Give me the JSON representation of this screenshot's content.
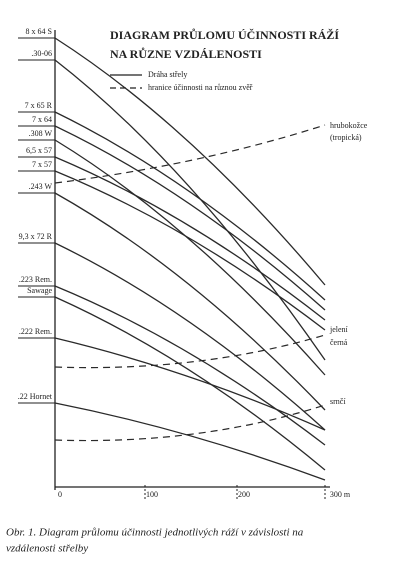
{
  "header": {
    "title_lines": [
      "DIAGRAM PRŮLOMU ÚČINNOSTI RÁŽÍ",
      "NA RŮZNE VZDÁLENOSTI"
    ]
  },
  "legend": {
    "solid": "Dráha střely",
    "dashed": "hranice účinnosti na různou zvěř"
  },
  "cartridges": [
    "8 x 64 S",
    ".30-06",
    "7 x 65 R",
    "7 x 64",
    ".308 W",
    "6,5 x 57",
    "7 x 57",
    ".243 W",
    "9,3 x 72 R",
    ".223 Rem.",
    "Sawage",
    ".222 Rem.",
    ".22 Hornet"
  ],
  "zones": [
    [
      "hrubokožce",
      "(tropická)"
    ],
    [
      "jelení",
      "černá"
    ],
    [
      "srnčí"
    ]
  ],
  "x_axis": [
    "0",
    "100",
    "200",
    "300 m"
  ],
  "caption": [
    "Obr. 1. Diagram průlomu účinnosti jednotlivých ráží v závislosti na",
    "vzdálenosti střelby"
  ]
}
